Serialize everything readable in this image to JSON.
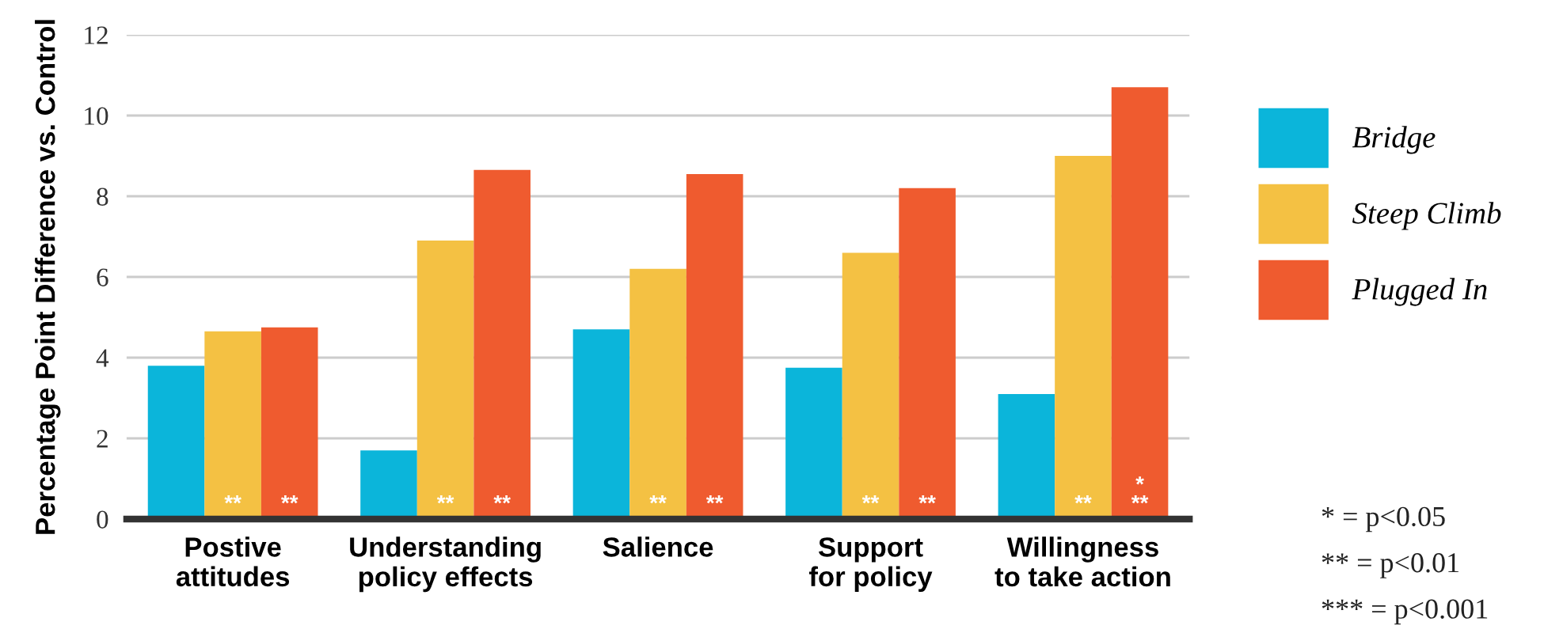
{
  "chart_data": {
    "type": "bar",
    "ylabel": "Percentage Point Difference vs. Control",
    "categories": [
      "Postive\nattitudes",
      "Understanding\npolicy effects",
      "Salience",
      "Support\nfor policy",
      "Willingness\nto take action"
    ],
    "series": [
      {
        "name": "Bridge",
        "color": "#0bb5da",
        "values": [
          3.8,
          1.7,
          4.7,
          3.75,
          3.1
        ]
      },
      {
        "name": "Steep Climb",
        "color": "#f4c143",
        "values": [
          4.65,
          6.9,
          6.2,
          6.6,
          9.0
        ],
        "value_labels": [
          "**",
          "**",
          "**",
          "**",
          "**"
        ]
      },
      {
        "name": "Plugged In",
        "color": "#ef5b2f",
        "values": [
          4.75,
          8.65,
          8.55,
          8.2,
          10.7
        ],
        "value_labels": [
          "**",
          "**",
          "**",
          "**",
          "*\n**"
        ]
      }
    ],
    "ylim": [
      0,
      12
    ],
    "yticks": [
      0,
      2,
      4,
      6,
      8,
      10,
      12
    ],
    "grid": "y",
    "legend": "right",
    "annotations": [
      "* = p<0.05",
      "** = p<0.01",
      "*** = p<0.001"
    ]
  }
}
